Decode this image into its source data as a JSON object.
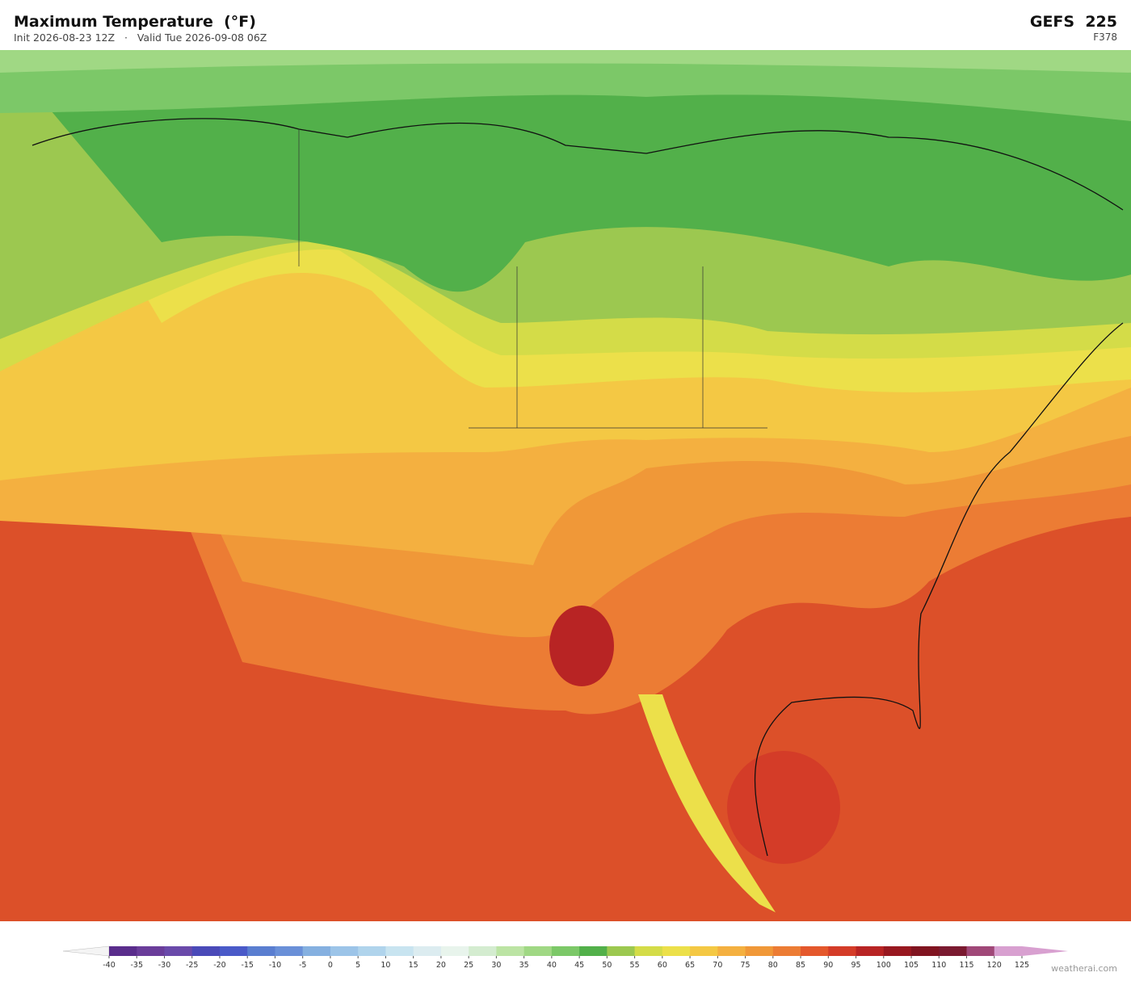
{
  "header": {
    "title": "Maximum Temperature  (°F)",
    "subtitle": "Init 2026-08-23 12Z   ·   Valid Tue 2026-09-08 06Z",
    "model": "GEFS  225",
    "forecast_hour": "F378"
  },
  "colorbar": {
    "range": [
      -40,
      125
    ],
    "ticks": [
      -40,
      -35,
      -30,
      -25,
      -20,
      -15,
      -10,
      -5,
      0,
      5,
      10,
      15,
      20,
      25,
      30,
      35,
      40,
      45,
      50,
      55,
      60,
      65,
      70,
      75,
      80,
      85,
      90,
      95,
      100,
      105,
      110,
      115,
      120,
      125
    ],
    "colors": [
      "#5a2d8c",
      "#6a3d9a",
      "#6a4aaa",
      "#4a4ab8",
      "#4a5ac8",
      "#5a7ed0",
      "#6a90d8",
      "#85b0e0",
      "#9cc4e8",
      "#b0d4ec",
      "#c8e4f0",
      "#dcecf0",
      "#e8f4ec",
      "#d4ecd0",
      "#bce4a4",
      "#a0d884",
      "#7cc868",
      "#52b04a",
      "#9cc850",
      "#d4dc48",
      "#ece04a",
      "#f4c844",
      "#f4b040",
      "#f09838",
      "#ec7c34",
      "#e4582c",
      "#d43c28",
      "#b82424",
      "#981820",
      "#801420",
      "#7a1a30",
      "#a04878",
      "#d8a0d0"
    ],
    "under_color": "#f4f4f4",
    "over_color": "#d8a0d0"
  },
  "footer": {
    "credit": "weatherai.com"
  }
}
